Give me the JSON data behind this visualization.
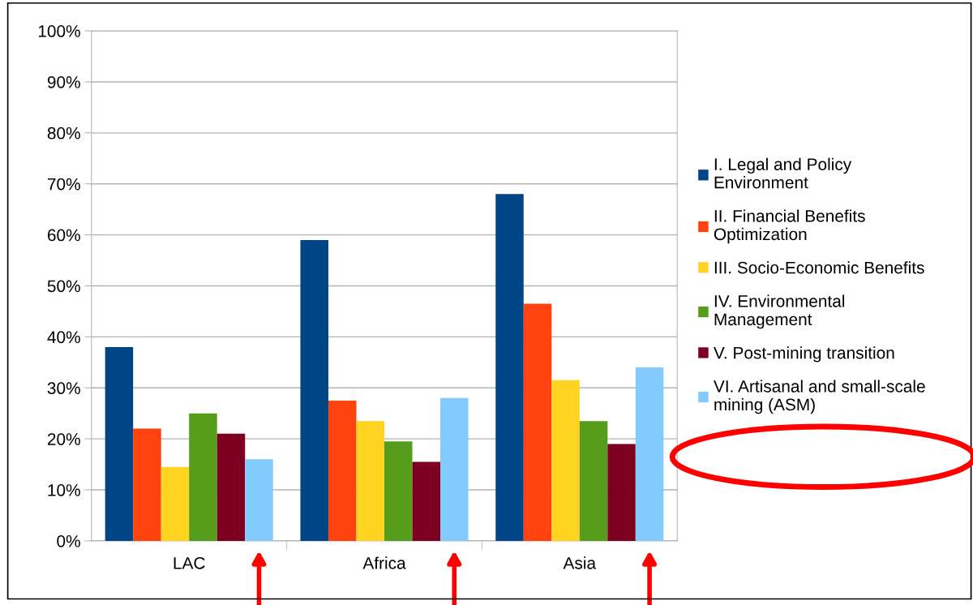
{
  "chart_data": {
    "type": "bar",
    "categories": [
      "LAC",
      "Africa",
      "Asia"
    ],
    "series": [
      {
        "name": "I. Legal and Policy\nEnvironment",
        "color": "#004586",
        "values": [
          38,
          59,
          68
        ]
      },
      {
        "name": "II. Financial Benefits\nOptimization",
        "color": "#ff420e",
        "values": [
          22,
          27.5,
          46.5
        ]
      },
      {
        "name": "III. Socio-Economic Benefits",
        "color": "#ffd320",
        "values": [
          14.5,
          23.5,
          31.5
        ]
      },
      {
        "name": "IV. Environmental\nManagement",
        "color": "#579d1c",
        "values": [
          25,
          19.5,
          23.5
        ]
      },
      {
        "name": "V. Post-mining transition",
        "color": "#7e0021",
        "values": [
          21,
          15.5,
          19
        ]
      },
      {
        "name": "VI. Artisanal and small-scale\nmining (ASM)",
        "color": "#83caff",
        "values": [
          16,
          28,
          34
        ]
      }
    ],
    "ylim": [
      0,
      100
    ],
    "yticks": [
      {
        "value": 0,
        "label": "0%"
      },
      {
        "value": 10,
        "label": "10%"
      },
      {
        "value": 20,
        "label": "20%"
      },
      {
        "value": 30,
        "label": "30%"
      },
      {
        "value": 40,
        "label": "40%"
      },
      {
        "value": 50,
        "label": "50%"
      },
      {
        "value": 60,
        "label": "60%"
      },
      {
        "value": 70,
        "label": "70%"
      },
      {
        "value": 80,
        "label": "80%"
      },
      {
        "value": 90,
        "label": "90%"
      },
      {
        "value": 100,
        "label": "100%"
      }
    ],
    "grid": "y",
    "legend": "right"
  }
}
